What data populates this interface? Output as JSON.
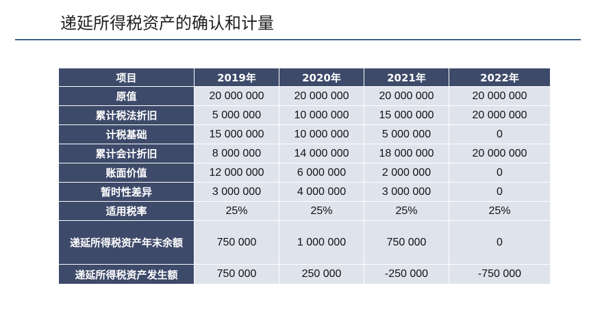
{
  "slide": {
    "title": "递延所得税资产的确认和计量"
  },
  "table": {
    "headers": [
      "项目",
      "2019年",
      "2020年",
      "2021年",
      "2022年"
    ],
    "rows": [
      {
        "label": "原值",
        "values": [
          "20 000 000",
          "20 000 000",
          "20 000 000",
          "20 000 000"
        ]
      },
      {
        "label": "累计税法折旧",
        "values": [
          "5 000 000",
          "10 000 000",
          "15 000 000",
          "20 000 000"
        ]
      },
      {
        "label": "计税基础",
        "values": [
          "15 000 000",
          "10 000 000",
          "5 000 000",
          "0"
        ]
      },
      {
        "label": "累计会计折旧",
        "values": [
          "8 000 000",
          "14 000 000",
          "18 000 000",
          "20 000 000"
        ]
      },
      {
        "label": "账面价值",
        "values": [
          "12 000 000",
          "6 000 000",
          "2 000 000",
          "0"
        ]
      },
      {
        "label": "暂时性差异",
        "values": [
          "3 000 000",
          "4 000 000",
          "3 000 000",
          "0"
        ]
      },
      {
        "label": "适用税率",
        "values": [
          "25%",
          "25%",
          "25%",
          "25%"
        ]
      },
      {
        "label": "递延所得税资产年末余额",
        "values": [
          "750 000",
          "1 000 000",
          "750 000",
          "0"
        ]
      },
      {
        "label": "递延所得税资产发生额",
        "values": [
          "750 000",
          "250 000",
          "-250 000",
          "-750 000"
        ]
      }
    ]
  },
  "colors": {
    "header_bg": "#3e4a6a",
    "cell_bg": "#dfe3ec",
    "rule": "#3c5f86"
  }
}
